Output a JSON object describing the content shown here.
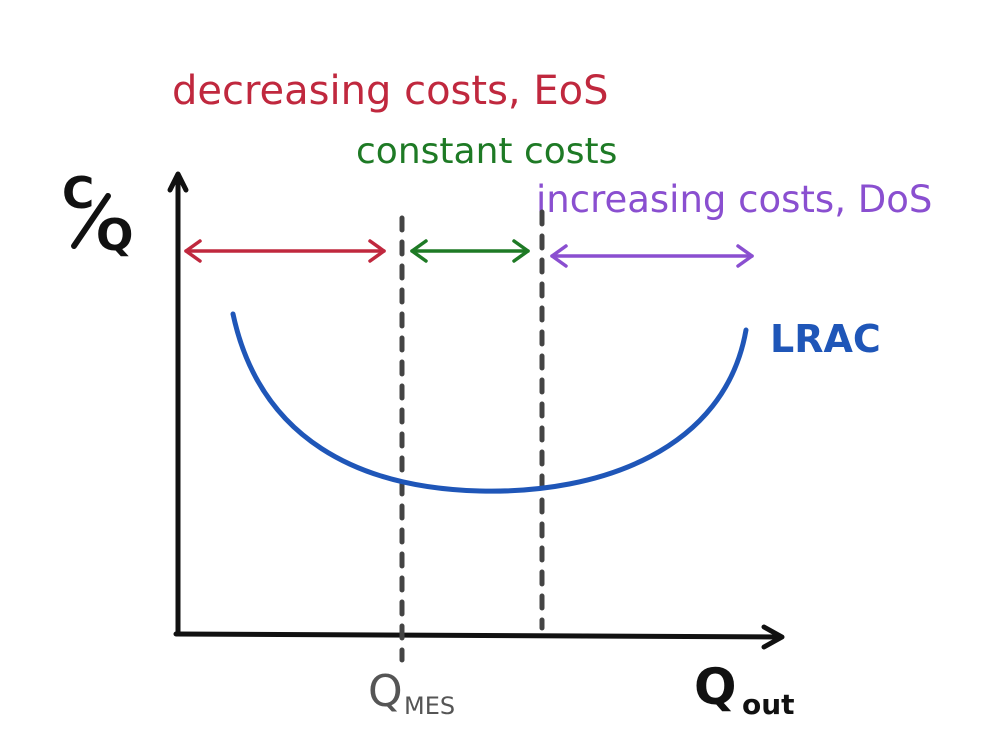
{
  "colors": {
    "axis": "#111111",
    "divider": "#444444",
    "decreasing": "#c0283e",
    "constant": "#1e7a25",
    "increasing": "#8a4fd0",
    "curve": "#1f56b8",
    "axis_label": "#111111",
    "mes_label": "#555555"
  },
  "labels": {
    "decreasing": "decreasing costs, EoS",
    "constant": "constant costs",
    "increasing": "increasing costs, DoS",
    "curve": "LRAC",
    "y_axis_numerator": "C",
    "y_axis_denominator": "Q",
    "x_axis_main": "Q",
    "x_axis_sub": "out",
    "mes_main": "Q",
    "mes_sub": "MES"
  }
}
